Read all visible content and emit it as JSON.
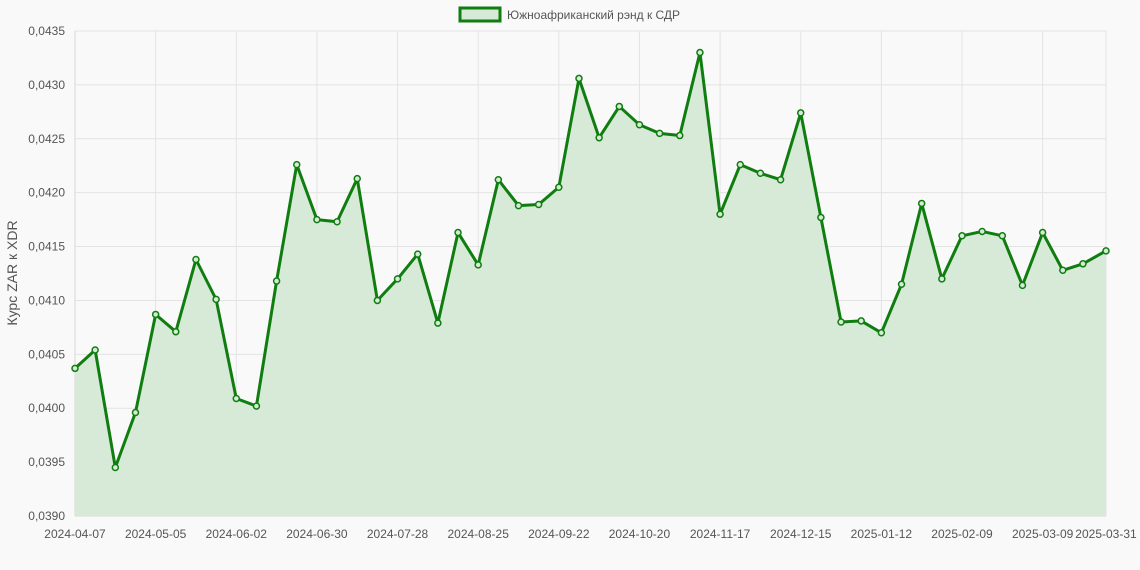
{
  "chart_data": {
    "type": "line",
    "title": "",
    "xlabel": "",
    "ylabel": "Курс ZAR к XDR",
    "ylim": [
      0.039,
      0.0435
    ],
    "y_ticks": [
      "0,0390",
      "0,0395",
      "0,0400",
      "0,0405",
      "0,0410",
      "0,0415",
      "0,0420",
      "0,0425",
      "0,0430",
      "0,0435"
    ],
    "x_ticks": [
      "2024-04-07",
      "2024-05-05",
      "2024-06-02",
      "2024-06-30",
      "2024-07-28",
      "2024-08-25",
      "2024-09-22",
      "2024-10-20",
      "2024-11-17",
      "2024-12-15",
      "2025-01-12",
      "2025-02-09",
      "2025-03-09",
      "2025-03-31"
    ],
    "grid": true,
    "legend_position": "top",
    "colors": {
      "line": "#0f7d0f",
      "fill": "#d7ead7",
      "grid": "#e3e3e3",
      "background": "#f9f9f9"
    },
    "series": [
      {
        "name": "Южноафриканский рэнд к СДР",
        "x": [
          "2024-04-07",
          "2024-04-14",
          "2024-04-21",
          "2024-04-28",
          "2024-05-05",
          "2024-05-12",
          "2024-05-19",
          "2024-05-26",
          "2024-06-02",
          "2024-06-09",
          "2024-06-16",
          "2024-06-23",
          "2024-06-30",
          "2024-07-07",
          "2024-07-14",
          "2024-07-21",
          "2024-07-28",
          "2024-08-04",
          "2024-08-11",
          "2024-08-18",
          "2024-08-25",
          "2024-09-01",
          "2024-09-08",
          "2024-09-15",
          "2024-09-22",
          "2024-09-29",
          "2024-10-06",
          "2024-10-13",
          "2024-10-20",
          "2024-10-27",
          "2024-11-03",
          "2024-11-10",
          "2024-11-17",
          "2024-11-24",
          "2024-12-01",
          "2024-12-08",
          "2024-12-15",
          "2024-12-22",
          "2024-12-29",
          "2025-01-05",
          "2025-01-12",
          "2025-01-19",
          "2025-01-26",
          "2025-02-02",
          "2025-02-09",
          "2025-02-16",
          "2025-02-23",
          "2025-03-02",
          "2025-03-09",
          "2025-03-16",
          "2025-03-23",
          "2025-03-31"
        ],
        "values": [
          0.04037,
          0.04054,
          0.03945,
          0.03996,
          0.04087,
          0.04071,
          0.04138,
          0.04101,
          0.04009,
          0.04002,
          0.04118,
          0.04226,
          0.04175,
          0.04173,
          0.04213,
          0.041,
          0.0412,
          0.04143,
          0.04079,
          0.04163,
          0.04133,
          0.04212,
          0.04188,
          0.04189,
          0.04205,
          0.04306,
          0.04251,
          0.0428,
          0.04263,
          0.04255,
          0.04253,
          0.0433,
          0.0418,
          0.04226,
          0.04218,
          0.04212,
          0.04274,
          0.04177,
          0.0408,
          0.04081,
          0.0407,
          0.04115,
          0.0419,
          0.0412,
          0.0416,
          0.04164,
          0.0416,
          0.04114,
          0.04163,
          0.04128,
          0.04134,
          0.04146
        ]
      }
    ]
  }
}
